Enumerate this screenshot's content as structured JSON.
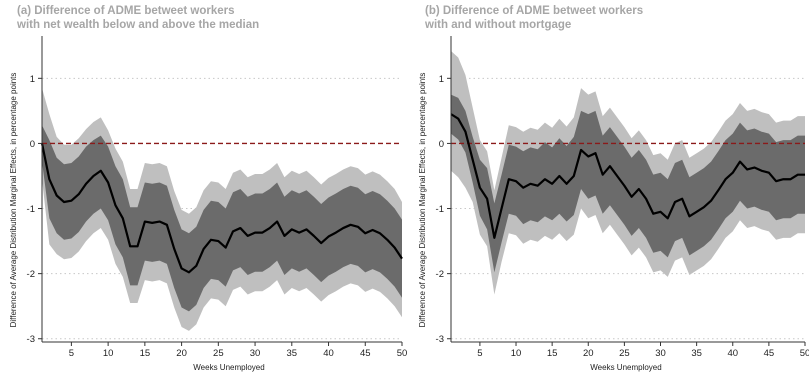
{
  "colors": {
    "outer_band": "#bfbfbf",
    "inner_band": "#6b6b6b",
    "line": "#000000",
    "zero_line": "#8b1a1a",
    "grid": "#c8c8c8",
    "title": "#a6a6a6"
  },
  "chart_data": [
    {
      "type": "line",
      "title_line1": "(a) Difference of ADME betweet workers",
      "title_line2": "with net wealth below and above the median",
      "xlabel": "Weeks Unemployed",
      "ylabel": "Difference of Average Distribution Marginal Effects, in percentage points",
      "xlim": [
        1,
        50
      ],
      "ylim": [
        -3.05,
        1.65
      ],
      "xticks": [
        5,
        10,
        15,
        20,
        25,
        30,
        35,
        40,
        45,
        50
      ],
      "yticks": [
        1,
        0,
        -1,
        -2,
        -3
      ],
      "grid": true,
      "zero_line": true,
      "x": [
        1,
        2,
        3,
        4,
        5,
        6,
        7,
        8,
        9,
        10,
        11,
        12,
        13,
        14,
        15,
        16,
        17,
        18,
        19,
        20,
        21,
        22,
        23,
        24,
        25,
        26,
        27,
        28,
        29,
        30,
        31,
        32,
        33,
        34,
        35,
        36,
        37,
        38,
        39,
        40,
        41,
        42,
        43,
        44,
        45,
        46,
        47,
        48,
        49,
        50
      ],
      "series": [
        {
          "role": "estimate",
          "values": [
            0,
            -0.55,
            -0.8,
            -0.9,
            -0.88,
            -0.78,
            -0.62,
            -0.5,
            -0.42,
            -0.6,
            -0.95,
            -1.15,
            -1.58,
            -1.58,
            -1.2,
            -1.22,
            -1.2,
            -1.25,
            -1.62,
            -1.92,
            -1.98,
            -1.88,
            -1.62,
            -1.48,
            -1.5,
            -1.6,
            -1.35,
            -1.3,
            -1.42,
            -1.37,
            -1.37,
            -1.3,
            -1.2,
            -1.42,
            -1.32,
            -1.37,
            -1.32,
            -1.42,
            -1.53,
            -1.43,
            -1.37,
            -1.3,
            -1.25,
            -1.28,
            -1.38,
            -1.33,
            -1.38,
            -1.48,
            -1.6,
            -1.77
          ]
        },
        {
          "role": "inner_upper",
          "values": [
            0.28,
            0.05,
            -0.22,
            -0.32,
            -0.3,
            -0.2,
            -0.05,
            0.05,
            0.12,
            -0.05,
            -0.35,
            -0.55,
            -0.98,
            -0.98,
            -0.6,
            -0.62,
            -0.6,
            -0.65,
            -1.02,
            -1.32,
            -1.38,
            -1.28,
            -1.02,
            -0.88,
            -0.9,
            -1.0,
            -0.75,
            -0.7,
            -0.82,
            -0.77,
            -0.77,
            -0.7,
            -0.6,
            -0.82,
            -0.72,
            -0.77,
            -0.72,
            -0.82,
            -0.93,
            -0.83,
            -0.77,
            -0.7,
            -0.65,
            -0.68,
            -0.78,
            -0.73,
            -0.78,
            -0.88,
            -1.0,
            -1.17
          ]
        },
        {
          "role": "inner_lower",
          "values": [
            -0.28,
            -1.15,
            -1.38,
            -1.48,
            -1.46,
            -1.36,
            -1.2,
            -1.08,
            -1.0,
            -1.18,
            -1.55,
            -1.75,
            -2.18,
            -2.18,
            -1.8,
            -1.82,
            -1.8,
            -1.85,
            -2.22,
            -2.52,
            -2.58,
            -2.48,
            -2.22,
            -2.08,
            -2.1,
            -2.2,
            -1.95,
            -1.9,
            -2.02,
            -1.97,
            -1.97,
            -1.9,
            -1.8,
            -2.02,
            -1.92,
            -1.97,
            -1.92,
            -2.02,
            -2.13,
            -2.03,
            -1.97,
            -1.9,
            -1.85,
            -1.88,
            -1.98,
            -1.93,
            -1.98,
            -2.08,
            -2.2,
            -2.37
          ]
        },
        {
          "role": "outer_upper",
          "values": [
            0.85,
            0.45,
            0.1,
            -0.02,
            -0.02,
            0.08,
            0.22,
            0.33,
            0.4,
            0.2,
            -0.08,
            -0.28,
            -0.7,
            -0.7,
            -0.3,
            -0.32,
            -0.3,
            -0.35,
            -0.73,
            -1.02,
            -1.08,
            -0.98,
            -0.72,
            -0.58,
            -0.6,
            -0.7,
            -0.45,
            -0.4,
            -0.52,
            -0.47,
            -0.47,
            -0.4,
            -0.3,
            -0.52,
            -0.42,
            -0.47,
            -0.42,
            -0.52,
            -0.63,
            -0.53,
            -0.47,
            -0.4,
            -0.35,
            -0.38,
            -0.48,
            -0.43,
            -0.48,
            -0.58,
            -0.7,
            -0.9
          ]
        },
        {
          "role": "outer_lower",
          "values": [
            -0.55,
            -1.55,
            -1.7,
            -1.78,
            -1.76,
            -1.66,
            -1.5,
            -1.38,
            -1.3,
            -1.48,
            -1.85,
            -2.05,
            -2.45,
            -2.45,
            -2.1,
            -2.12,
            -2.1,
            -2.15,
            -2.52,
            -2.82,
            -2.88,
            -2.78,
            -2.52,
            -2.38,
            -2.4,
            -2.5,
            -2.25,
            -2.2,
            -2.32,
            -2.27,
            -2.27,
            -2.2,
            -2.1,
            -2.32,
            -2.22,
            -2.27,
            -2.22,
            -2.32,
            -2.43,
            -2.33,
            -2.27,
            -2.2,
            -2.15,
            -2.18,
            -2.28,
            -2.23,
            -2.28,
            -2.38,
            -2.5,
            -2.67
          ]
        }
      ]
    },
    {
      "type": "line",
      "title_line1": "(b) Difference of ADME betweet workers",
      "title_line2": "with and without mortgage",
      "xlabel": "Weeks Unemployed",
      "ylabel": "Difference of Average Distribution Marginal Effects, in percentage points",
      "xlim": [
        1,
        50
      ],
      "ylim": [
        -3.05,
        1.65
      ],
      "xticks": [
        5,
        10,
        15,
        20,
        25,
        30,
        35,
        40,
        45,
        50
      ],
      "yticks": [
        1,
        0,
        -1,
        -2,
        -3
      ],
      "grid": true,
      "zero_line": true,
      "x": [
        1,
        2,
        3,
        4,
        5,
        6,
        7,
        8,
        9,
        10,
        11,
        12,
        13,
        14,
        15,
        16,
        17,
        18,
        19,
        20,
        21,
        22,
        23,
        24,
        25,
        26,
        27,
        28,
        29,
        30,
        31,
        32,
        33,
        34,
        35,
        36,
        37,
        38,
        39,
        40,
        41,
        42,
        43,
        44,
        45,
        46,
        47,
        48,
        49,
        50
      ],
      "series": [
        {
          "role": "estimate",
          "values": [
            0.45,
            0.38,
            0.18,
            -0.25,
            -0.68,
            -0.85,
            -1.45,
            -1.0,
            -0.55,
            -0.58,
            -0.68,
            -0.62,
            -0.65,
            -0.55,
            -0.62,
            -0.5,
            -0.62,
            -0.5,
            -0.1,
            -0.2,
            -0.15,
            -0.48,
            -0.35,
            -0.5,
            -0.65,
            -0.82,
            -0.7,
            -0.85,
            -1.08,
            -1.05,
            -1.15,
            -0.9,
            -0.85,
            -1.12,
            -1.05,
            -0.98,
            -0.88,
            -0.72,
            -0.55,
            -0.45,
            -0.28,
            -0.4,
            -0.37,
            -0.42,
            -0.45,
            -0.58,
            -0.55,
            -0.55,
            -0.48,
            -0.48
          ]
        },
        {
          "role": "inner_upper",
          "values": [
            0.75,
            0.7,
            0.5,
            0.1,
            -0.25,
            -0.38,
            -0.92,
            -0.48,
            -0.02,
            -0.05,
            -0.12,
            -0.06,
            -0.09,
            0.02,
            -0.06,
            0.08,
            -0.04,
            0.1,
            0.5,
            0.45,
            0.5,
            0.12,
            0.25,
            0.1,
            -0.05,
            -0.22,
            -0.1,
            -0.25,
            -0.48,
            -0.45,
            -0.55,
            -0.3,
            -0.25,
            -0.52,
            -0.45,
            -0.38,
            -0.28,
            -0.12,
            0.05,
            0.15,
            0.32,
            0.2,
            0.23,
            0.18,
            0.15,
            0.02,
            0.05,
            0.05,
            0.12,
            0.12
          ]
        },
        {
          "role": "inner_lower",
          "values": [
            0.15,
            0.06,
            -0.14,
            -0.6,
            -1.11,
            -1.32,
            -1.98,
            -1.52,
            -1.08,
            -1.11,
            -1.24,
            -1.18,
            -1.21,
            -1.12,
            -1.18,
            -1.08,
            -1.2,
            -1.1,
            -0.7,
            -0.85,
            -0.8,
            -1.08,
            -0.95,
            -1.1,
            -1.25,
            -1.42,
            -1.3,
            -1.45,
            -1.68,
            -1.65,
            -1.75,
            -1.5,
            -1.45,
            -1.72,
            -1.65,
            -1.58,
            -1.48,
            -1.32,
            -1.15,
            -1.05,
            -0.88,
            -1.0,
            -0.97,
            -1.02,
            -1.05,
            -1.18,
            -1.15,
            -1.15,
            -1.08,
            -1.08
          ]
        },
        {
          "role": "outer_upper",
          "values": [
            1.42,
            1.32,
            1.05,
            0.55,
            0.05,
            -0.12,
            -0.72,
            -0.22,
            0.28,
            0.25,
            0.18,
            0.24,
            0.21,
            0.32,
            0.24,
            0.38,
            0.26,
            0.4,
            0.85,
            0.75,
            0.8,
            0.42,
            0.55,
            0.4,
            0.25,
            0.08,
            0.2,
            0.05,
            -0.18,
            -0.15,
            -0.25,
            0.0,
            0.05,
            -0.22,
            -0.15,
            -0.08,
            0.02,
            0.18,
            0.35,
            0.45,
            0.62,
            0.5,
            0.53,
            0.48,
            0.45,
            0.32,
            0.35,
            0.35,
            0.42,
            0.42
          ]
        },
        {
          "role": "outer_lower",
          "values": [
            -0.42,
            -0.52,
            -0.68,
            -0.9,
            -1.4,
            -1.58,
            -2.32,
            -1.82,
            -1.38,
            -1.41,
            -1.54,
            -1.48,
            -1.51,
            -1.42,
            -1.48,
            -1.38,
            -1.5,
            -1.4,
            -1.0,
            -1.15,
            -1.1,
            -1.38,
            -1.25,
            -1.4,
            -1.55,
            -1.72,
            -1.6,
            -1.75,
            -1.98,
            -1.95,
            -2.05,
            -1.8,
            -1.75,
            -2.02,
            -1.95,
            -1.88,
            -1.78,
            -1.62,
            -1.45,
            -1.35,
            -1.18,
            -1.3,
            -1.27,
            -1.32,
            -1.35,
            -1.48,
            -1.45,
            -1.45,
            -1.38,
            -1.38
          ]
        }
      ]
    }
  ]
}
